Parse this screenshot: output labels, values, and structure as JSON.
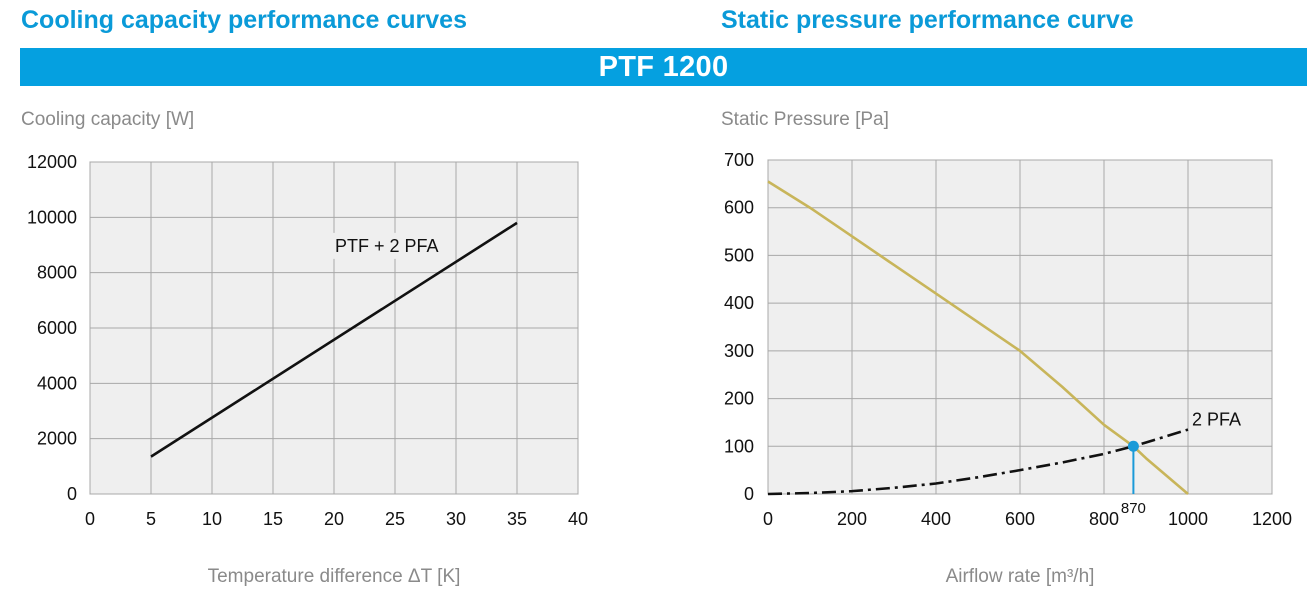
{
  "headings": {
    "left": "Cooling capacity performance curves",
    "right": "Static pressure performance curve"
  },
  "model_band": "PTF 1200",
  "colors": {
    "accent": "#05a0e0",
    "heading": "#0a9ad8",
    "plot_bg": "#efefef",
    "pressure_curve": "#c8b55a",
    "system_curve": "#111111",
    "marker": "#1a9ad8"
  },
  "chart_data": [
    {
      "type": "line",
      "title": "Cooling capacity performance curves",
      "ylabel": "Cooling capacity [W]",
      "xlabel": "Temperature difference ΔT [K]",
      "xlim": [
        0,
        40
      ],
      "ylim": [
        0,
        12000
      ],
      "x_ticks": [
        "0",
        "5",
        "10",
        "15",
        "20",
        "25",
        "30",
        "35",
        "40"
      ],
      "y_ticks": [
        "0",
        "2000",
        "4000",
        "6000",
        "8000",
        "10000",
        "12000"
      ],
      "grid": true,
      "series": [
        {
          "name": "PTF + 2 PFA",
          "x": [
            5,
            35
          ],
          "y": [
            1350,
            9800
          ]
        }
      ]
    },
    {
      "type": "line",
      "title": "Static pressure performance curve",
      "ylabel": "Static Pressure [Pa]",
      "xlabel": "Airflow rate [m³/h]",
      "xlim": [
        0,
        1200
      ],
      "ylim": [
        0,
        700
      ],
      "x_ticks": [
        "0",
        "200",
        "400",
        "600",
        "800",
        "1000",
        "1200"
      ],
      "y_ticks": [
        "0",
        "100",
        "200",
        "300",
        "400",
        "500",
        "600",
        "700"
      ],
      "grid": true,
      "series": [
        {
          "x": [
            0,
            100,
            200,
            300,
            400,
            500,
            600,
            700,
            800,
            870,
            900,
            1000
          ],
          "y": [
            655,
            600,
            540,
            480,
            420,
            360,
            300,
            225,
            145,
            100,
            75,
            0
          ]
        },
        {
          "name": "2 PFA",
          "x": [
            0,
            100,
            200,
            300,
            400,
            500,
            600,
            700,
            800,
            870,
            900,
            1000
          ],
          "y": [
            0,
            2,
            6,
            13,
            22,
            35,
            50,
            66,
            84,
            100,
            108,
            135
          ]
        }
      ],
      "annotations": [
        {
          "text": "870",
          "x": 870,
          "y": 100
        }
      ]
    }
  ]
}
